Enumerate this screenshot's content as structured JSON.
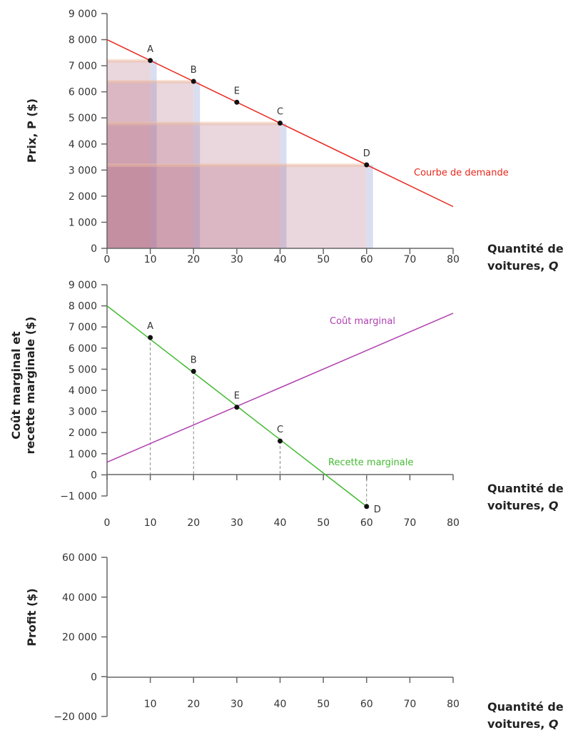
{
  "chart_data": [
    {
      "type": "line",
      "ylabel": "Prix, P ($)",
      "xlabel": "Quantité de voitures, Q",
      "xlim": [
        0,
        80
      ],
      "ylim": [
        0,
        9000
      ],
      "xticks": [
        "0",
        "10",
        "20",
        "30",
        "40",
        "50",
        "60",
        "70",
        "80"
      ],
      "yticks": [
        "0",
        "1 000",
        "2 000",
        "3 000",
        "4 000",
        "5 000",
        "6 000",
        "7 000",
        "8 000",
        "9 000"
      ],
      "series": [
        {
          "name": "Courbe de demande",
          "color": "#e8281e",
          "x": [
            0,
            80
          ],
          "y": [
            8000,
            1600
          ]
        }
      ],
      "points": [
        {
          "label": "A",
          "x": 10,
          "y": 7200
        },
        {
          "label": "B",
          "x": 20,
          "y": 6400
        },
        {
          "label": "E",
          "x": 30,
          "y": 5600
        },
        {
          "label": "C",
          "x": 40,
          "y": 4800
        },
        {
          "label": "D",
          "x": 60,
          "y": 3200
        }
      ],
      "revenue_rectangles": [
        {
          "q": 10,
          "p": 7200
        },
        {
          "q": 20,
          "p": 6400
        },
        {
          "q": 40,
          "p": 4800
        },
        {
          "q": 60,
          "p": 3200
        }
      ]
    },
    {
      "type": "line",
      "ylabel": "Coût marginal et recette marginale ($)",
      "xlabel": "Quantité de voitures, Q",
      "xlim": [
        0,
        80
      ],
      "ylim": [
        -1000,
        9000
      ],
      "xticks": [
        "0",
        "10",
        "20",
        "30",
        "40",
        "50",
        "60",
        "70",
        "80"
      ],
      "yticks": [
        "−1 000",
        "0",
        "1 000",
        "2 000",
        "3 000",
        "4 000",
        "5 000",
        "6 000",
        "7 000",
        "8 000",
        "9 000"
      ],
      "series": [
        {
          "name": "Coût marginal",
          "color": "#b040b0",
          "x": [
            0,
            80
          ],
          "y": [
            600,
            7650
          ]
        },
        {
          "name": "Recette marginale",
          "color": "#44bb33",
          "x": [
            0,
            60
          ],
          "y": [
            8000,
            -1500
          ]
        }
      ],
      "points": [
        {
          "label": "A",
          "x": 10,
          "y": 6500
        },
        {
          "label": "B",
          "x": 20,
          "y": 4900
        },
        {
          "label": "E",
          "x": 30,
          "y": 3200
        },
        {
          "label": "C",
          "x": 40,
          "y": 1600
        },
        {
          "label": "D",
          "x": 60,
          "y": -1500
        }
      ]
    },
    {
      "type": "line",
      "ylabel": "Profit ($)",
      "xlabel": "Quantité de voitures, Q",
      "xlim": [
        0,
        80
      ],
      "ylim": [
        -20000,
        60000
      ],
      "xticks": [
        "10",
        "20",
        "30",
        "40",
        "50",
        "60",
        "70",
        "80"
      ],
      "yticks": [
        "−20 000",
        "0",
        "20 000",
        "40 000",
        "60 000"
      ],
      "series": []
    }
  ]
}
